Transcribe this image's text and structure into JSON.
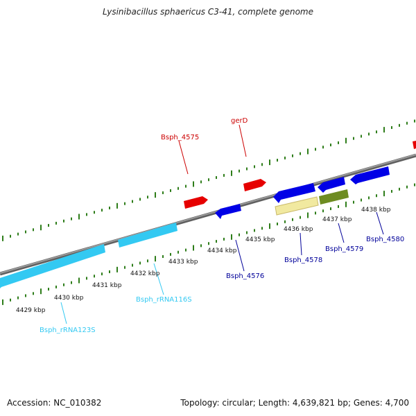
{
  "title": "Lysinibacillus sphaericus C3-41, complete genome",
  "footer": {
    "accession": "Accession: NC_010382",
    "summary": "Topology: circular; Length: 4,639,821 bp; Genes: 4,700"
  },
  "colors": {
    "tick": "#2e7d1a",
    "backbone": "#808080",
    "forward_gene": "#e60000",
    "reverse_gene": "#0000e6",
    "rrna": "#33c9f2",
    "pale_feature": "#f1e9a0",
    "olive_feature": "#6e8c22"
  },
  "axis": {
    "kbp_labels": [
      "4429 kbp",
      "4430 kbp",
      "4431 kbp",
      "4432 kbp",
      "4433 kbp",
      "4434 kbp",
      "4435 kbp",
      "4436 kbp",
      "4437 kbp",
      "4438 kbp"
    ]
  },
  "gene_labels": {
    "bsph_4575": "Bsph_4575",
    "gerD": "gerD",
    "bsph_4576": "Bsph_4576",
    "bsph_4578": "Bsph_4578",
    "bsph_4579": "Bsph_4579",
    "bsph_4580": "Bsph_4580",
    "rrna_116s": "Bsph_rRNA116S",
    "rrna_123s": "Bsph_rRNA123S"
  }
}
